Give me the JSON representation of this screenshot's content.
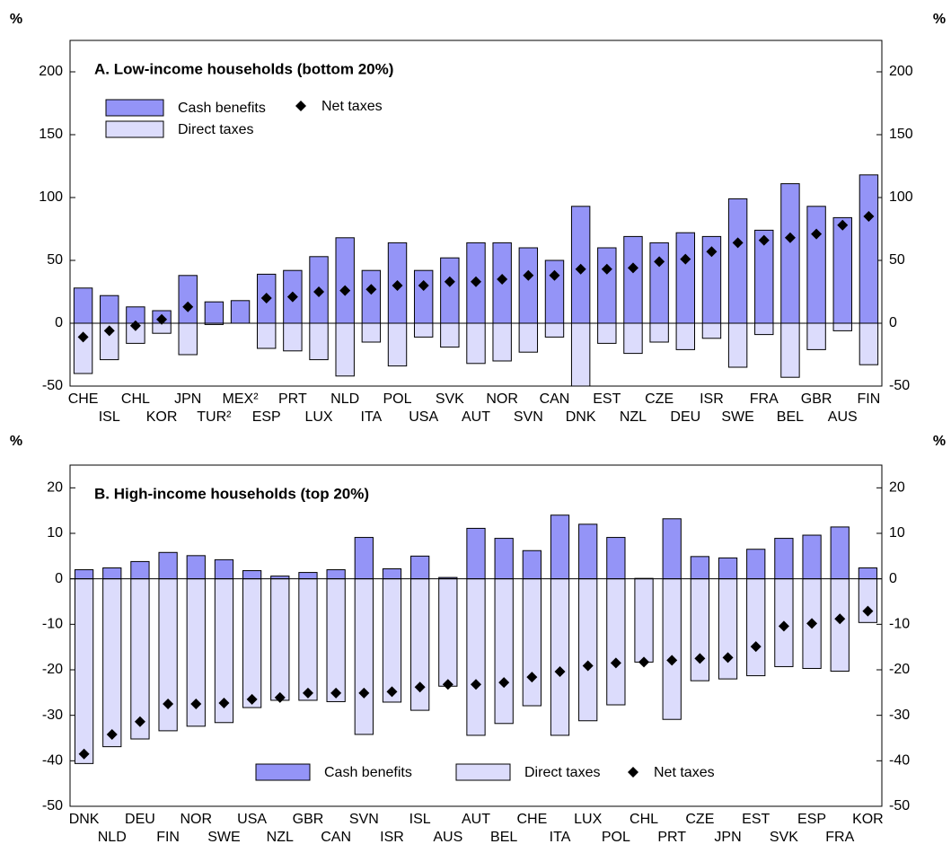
{
  "chart_data": [
    {
      "type": "bar",
      "title": "A. Low-income households (bottom 20%)",
      "ylabel": "%",
      "categories": [
        "CHE",
        "ISL",
        "CHL",
        "KOR",
        "JPN",
        "TUR²",
        "MEX²",
        "ESP",
        "PRT",
        "LUX",
        "NLD",
        "ITA",
        "POL",
        "USA",
        "SVK",
        "AUT",
        "NOR",
        "SVN",
        "CAN",
        "DNK",
        "EST",
        "NZL",
        "CZE",
        "DEU",
        "ISR",
        "SWE",
        "FRA",
        "BEL",
        "GBR",
        "AUS",
        "FIN"
      ],
      "series": [
        {
          "name": "Cash benefits",
          "color": "#9494f7",
          "values": [
            28,
            22,
            13,
            10,
            38,
            17,
            18,
            39,
            42,
            53,
            68,
            42,
            64,
            42,
            52,
            64,
            64,
            60,
            50,
            93,
            60,
            69,
            64,
            72,
            69,
            99,
            74,
            111,
            93,
            84,
            118
          ]
        },
        {
          "name": "Direct taxes",
          "color": "#dcdcfc",
          "values": [
            -40,
            -29,
            -16,
            -8,
            -25,
            -1,
            0,
            -20,
            -22,
            -29,
            -42,
            -15,
            -34,
            -11,
            -19,
            -32,
            -30,
            -23,
            -11,
            -50,
            -16,
            -24,
            -15,
            -21,
            -12,
            -35,
            -9,
            -43,
            -21,
            -6,
            -33
          ]
        },
        {
          "name": "Net taxes",
          "color": "#000000",
          "marker": "diamond",
          "values": [
            -11,
            -6,
            -2,
            3,
            13,
            null,
            null,
            20,
            21,
            25,
            26,
            27,
            30,
            30,
            33,
            33,
            35,
            38,
            38,
            43,
            43,
            44,
            49,
            51,
            57,
            64,
            66,
            68,
            71,
            78,
            85
          ]
        }
      ],
      "ylim": [
        -50,
        225
      ],
      "yticks": [
        -50,
        0,
        50,
        100,
        150,
        200
      ],
      "legend": "upper left"
    },
    {
      "type": "bar",
      "title": "B. High-income households (top 20%)",
      "ylabel": "%",
      "categories": [
        "DNK",
        "NLD",
        "DEU",
        "FIN",
        "NOR",
        "SWE",
        "USA",
        "NZL",
        "GBR",
        "CAN",
        "SVN",
        "ISR",
        "ISL",
        "AUS",
        "AUT",
        "BEL",
        "CHE",
        "ITA",
        "LUX",
        "POL",
        "CHL",
        "PRT",
        "CZE",
        "JPN",
        "EST",
        "SVK",
        "ESP",
        "FRA",
        "KOR"
      ],
      "series": [
        {
          "name": "Cash benefits",
          "color": "#9494f7",
          "values": [
            2.0,
            2.4,
            3.8,
            5.8,
            5.1,
            4.2,
            1.8,
            0.6,
            1.4,
            2.0,
            9.1,
            2.2,
            5.0,
            0.3,
            11.1,
            8.9,
            6.2,
            14.0,
            12.0,
            9.1,
            0.1,
            13.2,
            4.9,
            4.6,
            6.5,
            8.9,
            9.6,
            11.4,
            2.4
          ]
        },
        {
          "name": "Direct taxes",
          "color": "#dcdcfc",
          "values": [
            -40.6,
            -36.9,
            -35.2,
            -33.4,
            -32.4,
            -31.6,
            -28.3,
            -26.7,
            -26.7,
            -27.0,
            -34.2,
            -27.1,
            -28.9,
            -23.6,
            -34.4,
            -31.8,
            -27.9,
            -34.4,
            -31.2,
            -27.7,
            -18.3,
            -30.9,
            -22.4,
            -22.0,
            -21.3,
            -19.3,
            -19.7,
            -20.3,
            -9.6
          ]
        },
        {
          "name": "Net taxes",
          "color": "#000000",
          "marker": "diamond",
          "values": [
            -38.5,
            -34.2,
            -31.4,
            -27.5,
            -27.5,
            -27.3,
            -26.5,
            -26.1,
            -25.1,
            -25.1,
            -25.1,
            -24.8,
            -23.8,
            -23.2,
            -23.2,
            -22.8,
            -21.6,
            -20.4,
            -19.1,
            -18.5,
            -18.3,
            -17.9,
            -17.5,
            -17.3,
            -14.9,
            -10.4,
            -9.8,
            -8.8,
            -7.1
          ]
        }
      ],
      "ylim": [
        -50,
        25
      ],
      "yticks": [
        -50,
        -40,
        -30,
        -20,
        -10,
        0,
        10,
        20
      ],
      "legend": "lower center"
    }
  ]
}
